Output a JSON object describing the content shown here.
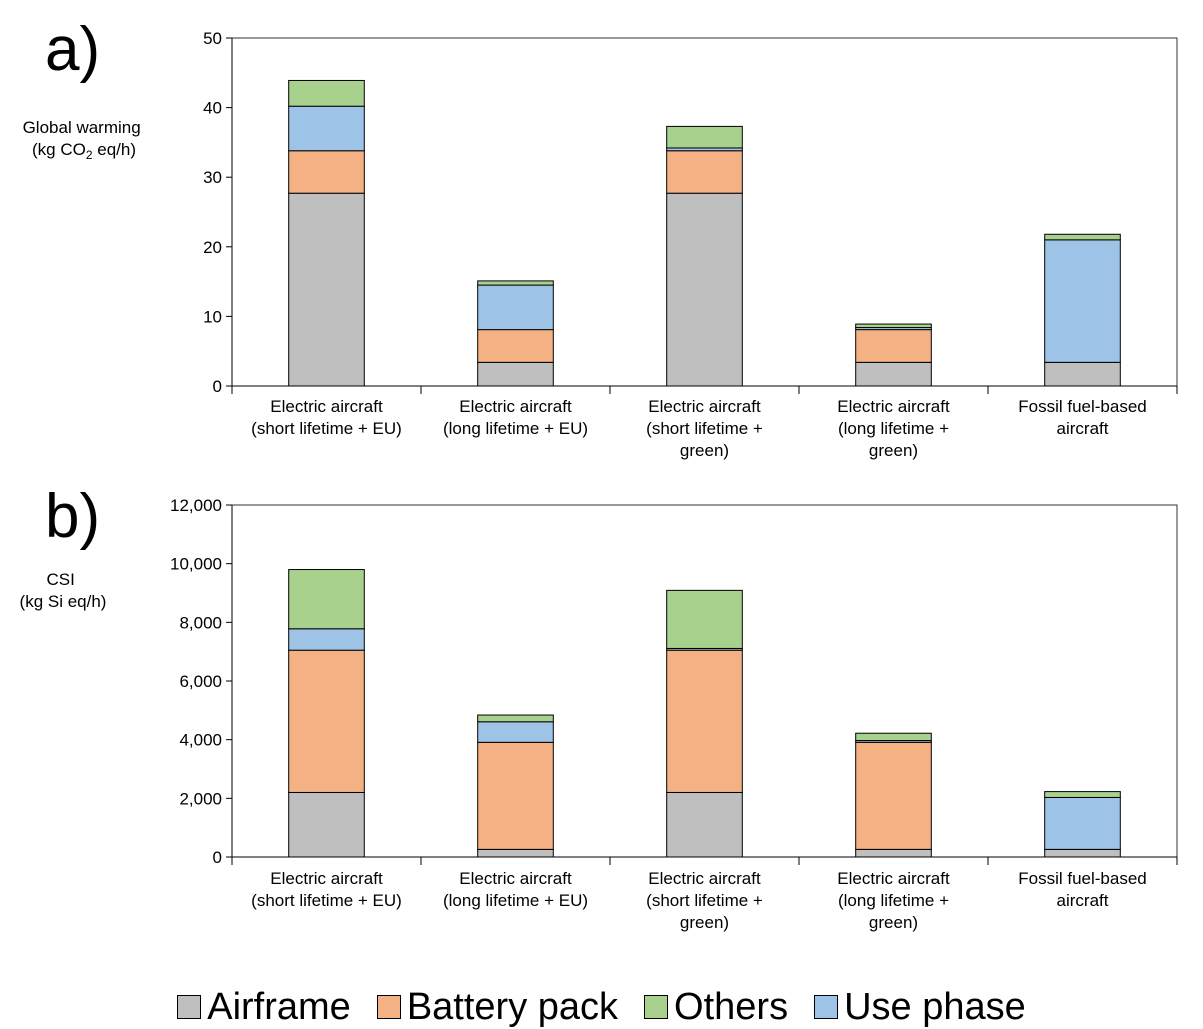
{
  "chart_data": [
    {
      "panel_label": "a)",
      "type": "bar",
      "stacked": true,
      "ylabel_line1": "Global warming",
      "ylabel_line2_pre": "(kg CO",
      "ylabel_line2_sub": "2",
      "ylabel_line2_post": " eq/h)",
      "ylim": [
        0,
        50
      ],
      "yticks": [
        0,
        10,
        20,
        30,
        40,
        50
      ],
      "ytick_labels": [
        "0",
        "10",
        "20",
        "30",
        "40",
        "50"
      ],
      "categories": [
        [
          "Electric aircraft",
          "(short lifetime + EU)"
        ],
        [
          "Electric aircraft",
          "(long lifetime + EU)"
        ],
        [
          "Electric aircraft",
          "(short lifetime +",
          "green)"
        ],
        [
          "Electric aircraft",
          "(long lifetime +",
          "green)"
        ],
        [
          "Fossil fuel-based",
          "aircraft"
        ]
      ],
      "series": [
        {
          "name": "Airframe",
          "values": [
            27.7,
            3.4,
            27.7,
            3.4,
            3.4
          ]
        },
        {
          "name": "Battery pack",
          "values": [
            6.1,
            4.7,
            6.1,
            4.7,
            0
          ]
        },
        {
          "name": "Use phase",
          "values": [
            6.4,
            6.4,
            0.4,
            0.3,
            17.6
          ]
        },
        {
          "name": "Others",
          "values": [
            3.7,
            0.6,
            3.1,
            0.5,
            0.8
          ]
        }
      ],
      "grid": false
    },
    {
      "panel_label": "b)",
      "type": "bar",
      "stacked": true,
      "ylabel_line1": "CSI",
      "ylabel_line2": "(kg Si eq/h)",
      "ylim": [
        0,
        12000
      ],
      "yticks": [
        0,
        2000,
        4000,
        6000,
        8000,
        10000,
        12000
      ],
      "ytick_labels": [
        "0",
        "2,000",
        "4,000",
        "6,000",
        "8,000",
        "10,000",
        "12,000"
      ],
      "categories": [
        [
          "Electric aircraft",
          "(short lifetime + EU)"
        ],
        [
          "Electric aircraft",
          "(long lifetime + EU)"
        ],
        [
          "Electric aircraft",
          "(short lifetime +",
          "green)"
        ],
        [
          "Electric aircraft",
          "(long lifetime +",
          "green)"
        ],
        [
          "Fossil fuel-based",
          "aircraft"
        ]
      ],
      "series": [
        {
          "name": "Airframe",
          "values": [
            2200,
            260,
            2200,
            260,
            260
          ]
        },
        {
          "name": "Battery pack",
          "values": [
            4850,
            3650,
            4850,
            3650,
            0
          ]
        },
        {
          "name": "Use phase",
          "values": [
            730,
            700,
            60,
            60,
            1770
          ]
        },
        {
          "name": "Others",
          "values": [
            2020,
            230,
            1980,
            250,
            200
          ]
        }
      ],
      "grid": false
    }
  ],
  "legend": {
    "placement": "bottom-center",
    "items": [
      {
        "name": "Airframe",
        "color": "#bfbfbf"
      },
      {
        "name": "Battery pack",
        "color": "#f4b183"
      },
      {
        "name": "Others",
        "color": "#a9d18e"
      },
      {
        "name": "Use phase",
        "color": "#9dc3e6"
      }
    ]
  },
  "colors": {
    "Airframe": "#bfbfbf",
    "Battery pack": "#f4b183",
    "Use phase": "#9dc3e6",
    "Others": "#a9d18e"
  }
}
